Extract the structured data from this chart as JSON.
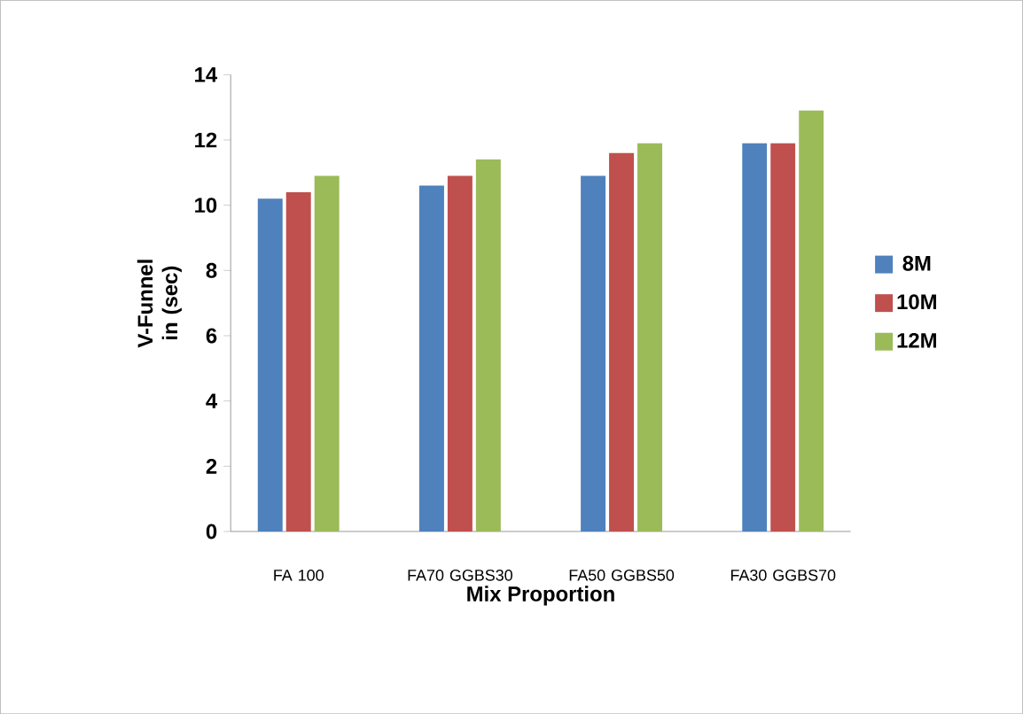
{
  "chart_data": {
    "type": "bar",
    "xlabel": "Mix Proportion",
    "ylabel": "V-Funnel in (sec)",
    "categories": [
      "FA 100",
      "FA70 GGBS30",
      "FA50 GGBS50",
      "FA30 GGBS70"
    ],
    "series": [
      {
        "name": "8M",
        "color": "#4f81bd",
        "values": [
          10.2,
          10.6,
          10.9,
          11.9
        ]
      },
      {
        "name": "10M",
        "color": "#c0504d",
        "values": [
          10.4,
          10.9,
          11.6,
          11.9
        ]
      },
      {
        "name": "12M",
        "color": "#9bbb59",
        "values": [
          10.9,
          11.4,
          11.9,
          12.9
        ]
      }
    ],
    "ylim": [
      0,
      14
    ],
    "yticks": [
      0,
      2,
      4,
      6,
      8,
      10,
      12,
      14
    ],
    "grid": false,
    "legend": "right"
  }
}
